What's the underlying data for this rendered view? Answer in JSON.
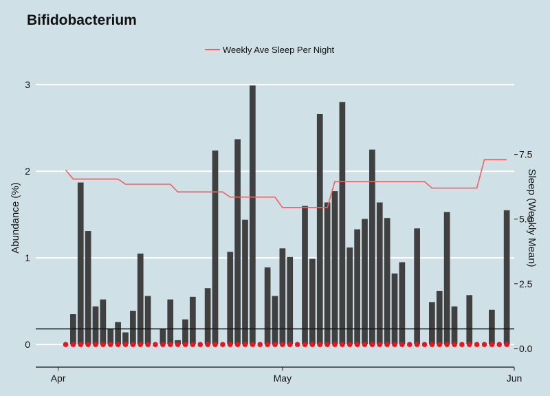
{
  "chart_data": {
    "type": "bar",
    "title": "Bifidobacterium",
    "ylabel": "Abundance (%)",
    "y2label": "Sleep (Weekly Mean)",
    "xlabel": "",
    "x_range": [
      "2023-03-29",
      "2023-06-01"
    ],
    "ylim": [
      -0.15,
      3.12
    ],
    "y2lim": [
      -0.35,
      10.6
    ],
    "yticks": [
      0,
      1,
      2,
      3
    ],
    "ytick_labels": [
      "0",
      "1",
      "2",
      "3"
    ],
    "y2ticks": [
      0,
      2.5,
      5,
      7.5
    ],
    "y2tick_labels": [
      "0.0",
      "2.5",
      "5.0",
      "7.5"
    ],
    "xticks": [
      {
        "date": "2023-04-01",
        "label": "Apr"
      },
      {
        "date": "2023-05-01",
        "label": "May"
      },
      {
        "date": "2023-06-01",
        "label": "Jun"
      }
    ],
    "grid": true,
    "legend_position": "top",
    "legend": [
      {
        "label": "Weekly Ave Sleep Per Night",
        "kind": "line"
      }
    ],
    "threshold": 0.18,
    "colors": {
      "background": "#d0e0e7",
      "bars": "#404040",
      "sleep_line": "#f06060",
      "points": "#e8141e",
      "threshold_line": "#111111",
      "grid": "#ffffff"
    },
    "series": [
      {
        "name": "Abundance",
        "kind": "bar",
        "x": [
          "2023-04-03",
          "2023-04-04",
          "2023-04-05",
          "2023-04-06",
          "2023-04-07",
          "2023-04-08",
          "2023-04-09",
          "2023-04-10",
          "2023-04-11",
          "2023-04-12",
          "2023-04-13",
          "2023-04-14",
          "2023-04-15",
          "2023-04-16",
          "2023-04-17",
          "2023-04-18",
          "2023-04-19",
          "2023-04-20",
          "2023-04-21",
          "2023-04-22",
          "2023-04-23",
          "2023-04-24",
          "2023-04-25",
          "2023-04-26",
          "2023-04-27",
          "2023-04-28",
          "2023-04-29",
          "2023-04-30",
          "2023-05-01",
          "2023-05-02",
          "2023-05-03",
          "2023-05-04",
          "2023-05-05",
          "2023-05-06",
          "2023-05-07",
          "2023-05-08",
          "2023-05-09",
          "2023-05-10",
          "2023-05-11",
          "2023-05-12",
          "2023-05-13",
          "2023-05-14",
          "2023-05-15",
          "2023-05-16",
          "2023-05-17",
          "2023-05-18",
          "2023-05-19",
          "2023-05-20",
          "2023-05-21",
          "2023-05-22",
          "2023-05-23",
          "2023-05-24",
          "2023-05-25",
          "2023-05-26",
          "2023-05-27",
          "2023-05-28",
          "2023-05-29",
          "2023-05-30",
          "2023-05-31"
        ],
        "values": [
          0.35,
          1.87,
          1.31,
          0.44,
          0.52,
          0.18,
          0.26,
          0.14,
          0.39,
          1.05,
          0.56,
          0,
          0.18,
          0.52,
          0.05,
          0.29,
          0.55,
          0,
          0.65,
          2.24,
          0,
          1.07,
          2.37,
          1.44,
          2.99,
          0,
          0.89,
          0.56,
          1.11,
          1.01,
          0,
          1.6,
          0.99,
          2.66,
          1.64,
          1.77,
          2.8,
          1.12,
          1.33,
          1.45,
          2.25,
          1.64,
          1.46,
          0.82,
          0.95,
          0,
          1.34,
          0,
          0.49,
          0.62,
          1.53,
          0.44,
          0,
          0.57,
          0,
          0,
          0.4,
          0,
          1.55
        ]
      },
      {
        "name": "Weekly Ave Sleep Per Night",
        "kind": "line",
        "axis": "right",
        "x": [
          "2023-04-02",
          "2023-04-03",
          "2023-04-09",
          "2023-04-10",
          "2023-04-16",
          "2023-04-17",
          "2023-04-23",
          "2023-04-24",
          "2023-04-30",
          "2023-05-01",
          "2023-05-07",
          "2023-05-08",
          "2023-05-14",
          "2023-05-15",
          "2023-05-20",
          "2023-05-21",
          "2023-05-27",
          "2023-05-28",
          "2023-05-31"
        ],
        "values": [
          6.9,
          6.55,
          6.55,
          6.35,
          6.35,
          6.05,
          6.05,
          5.85,
          5.85,
          5.45,
          5.45,
          6.45,
          6.45,
          6.45,
          6.45,
          6.2,
          6.2,
          7.3,
          7.3
        ]
      },
      {
        "name": "Sample points",
        "kind": "scatter",
        "x": [
          "2023-04-02",
          "2023-04-03",
          "2023-04-04",
          "2023-04-05",
          "2023-04-06",
          "2023-04-07",
          "2023-04-08",
          "2023-04-09",
          "2023-04-10",
          "2023-04-11",
          "2023-04-12",
          "2023-04-13",
          "2023-04-14",
          "2023-04-15",
          "2023-04-16",
          "2023-04-17",
          "2023-04-18",
          "2023-04-19",
          "2023-04-20",
          "2023-04-21",
          "2023-04-22",
          "2023-04-23",
          "2023-04-24",
          "2023-04-25",
          "2023-04-26",
          "2023-04-27",
          "2023-04-28",
          "2023-04-29",
          "2023-04-30",
          "2023-05-01",
          "2023-05-02",
          "2023-05-03",
          "2023-05-04",
          "2023-05-05",
          "2023-05-06",
          "2023-05-07",
          "2023-05-08",
          "2023-05-09",
          "2023-05-10",
          "2023-05-11",
          "2023-05-12",
          "2023-05-13",
          "2023-05-14",
          "2023-05-15",
          "2023-05-16",
          "2023-05-17",
          "2023-05-18",
          "2023-05-19",
          "2023-05-20",
          "2023-05-21",
          "2023-05-22",
          "2023-05-23",
          "2023-05-24",
          "2023-05-25",
          "2023-05-26",
          "2023-05-27",
          "2023-05-28",
          "2023-05-29",
          "2023-05-30",
          "2023-05-31"
        ],
        "values": [
          0,
          0,
          0,
          0,
          0,
          0,
          0,
          0,
          0,
          0,
          0,
          0,
          0,
          0,
          0,
          0,
          0,
          0,
          0,
          0,
          0,
          0,
          0,
          0,
          0,
          0,
          0,
          0,
          0,
          0,
          0,
          0,
          0,
          0,
          0,
          0,
          0,
          0,
          0,
          0,
          0,
          0,
          0,
          0,
          0,
          0,
          0,
          0,
          0,
          0,
          0,
          0,
          0,
          0,
          0,
          0,
          0,
          0,
          0,
          0
        ]
      }
    ]
  }
}
